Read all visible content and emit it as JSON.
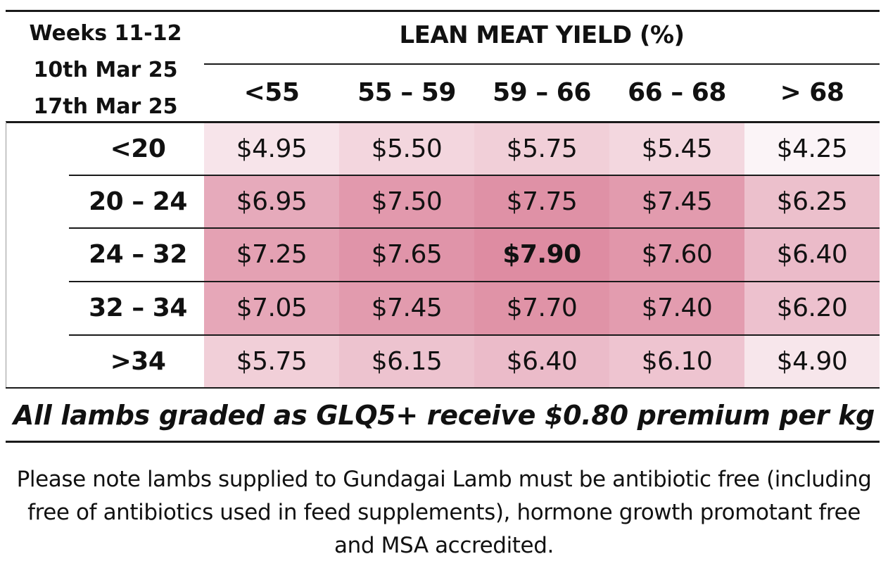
{
  "period": {
    "weeks": "Weeks 11-12",
    "start": "10th Mar 25",
    "end": "17th Mar 25"
  },
  "title": "LEAN MEAT YIELD (%)",
  "columns": [
    "<55",
    "55 – 59",
    "59 – 66",
    "66 – 68",
    "> 68"
  ],
  "rows": [
    {
      "label": "<20",
      "values": [
        "$4.95",
        "$5.50",
        "$5.75",
        "$5.45",
        "$4.25"
      ]
    },
    {
      "label": "20 – 24",
      "values": [
        "$6.95",
        "$7.50",
        "$7.75",
        "$7.45",
        "$6.25"
      ]
    },
    {
      "label": "24 – 32",
      "values": [
        "$7.25",
        "$7.65",
        "$7.90",
        "$7.60",
        "$6.40"
      ]
    },
    {
      "label": "32 – 34",
      "values": [
        "$7.05",
        "$7.45",
        "$7.70",
        "$7.40",
        "$6.20"
      ]
    },
    {
      "label": ">34",
      "values": [
        "$5.75",
        "$6.15",
        "$6.40",
        "$6.10",
        "$4.90"
      ]
    }
  ],
  "highlight_cell": "$7.90",
  "heat_colors": {
    "low": "#fbf4f7",
    "high": "#de8ca2"
  },
  "premium_note": "All lambs graded as GLQ5+ receive $0.80 premium per kg",
  "footnote": [
    "Please note lambs supplied to Gundagai Lamb must be antibiotic free (including",
    "free of antibiotics used in feed supplements), hormone growth promotant free",
    "and MSA accredited."
  ]
}
